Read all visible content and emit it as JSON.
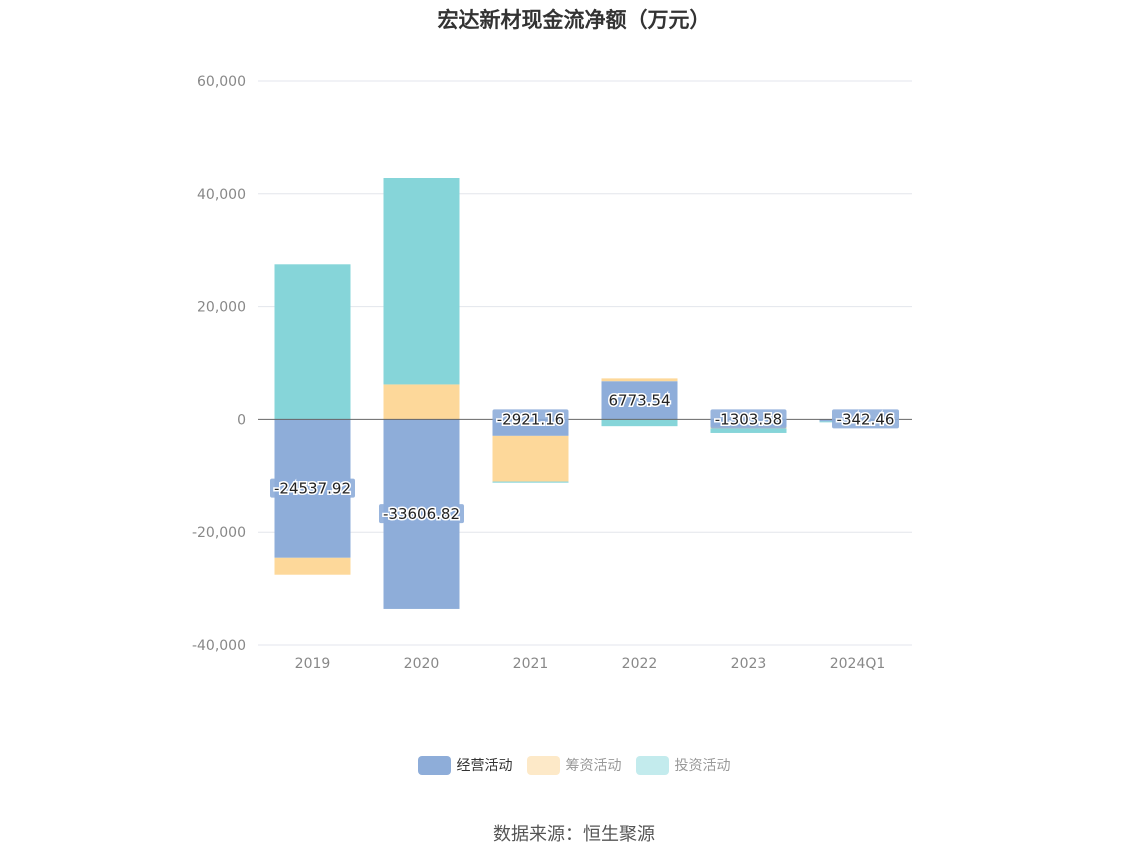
{
  "chart_data": {
    "type": "bar",
    "stacked": true,
    "title": "宏达新材现金流净额（万元）",
    "categories": [
      "2019",
      "2020",
      "2021",
      "2022",
      "2023",
      "2024Q1"
    ],
    "series": [
      {
        "name": "经营活动",
        "color": "#8eadd9",
        "values": [
          -24537.92,
          -33606.82,
          -2921.16,
          6773.54,
          -1303.58,
          -342.46
        ]
      },
      {
        "name": "筹资活动",
        "color": "#fdd89a",
        "values": [
          -3000,
          6200,
          -8100,
          500,
          -300,
          0
        ]
      },
      {
        "name": "投资活动",
        "color": "#86d5d9",
        "values": [
          27500,
          36600,
          -200,
          -1200,
          -800,
          -50
        ]
      }
    ],
    "data_labels": [
      "-24537.92",
      "-33606.82",
      "-2921.16",
      "6773.54",
      "-1303.58",
      "-342.46"
    ],
    "ylim": [
      -40000,
      60000
    ],
    "yticks": [
      60000,
      40000,
      20000,
      0,
      -20000,
      -40000
    ],
    "ytick_labels": [
      "60,000",
      "40,000",
      "20,000",
      "0",
      "-20,000",
      "-40,000"
    ],
    "grid": true,
    "legend_position": "bottom",
    "legend": [
      {
        "label": "经营活动",
        "color": "#8eadd9",
        "active": true
      },
      {
        "label": "筹资活动",
        "color": "#fde9c8",
        "active": false
      },
      {
        "label": "投资活动",
        "color": "#c3ebed",
        "active": false
      }
    ]
  },
  "source": "数据来源：恒生聚源"
}
